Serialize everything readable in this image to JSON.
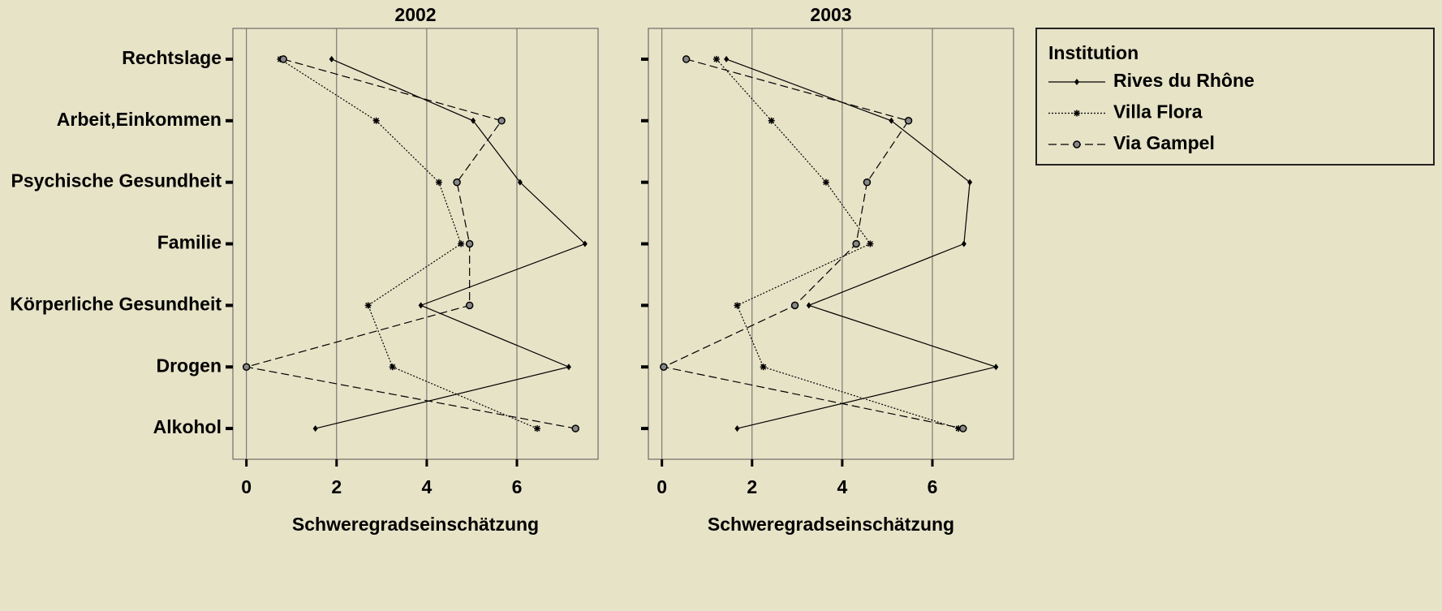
{
  "chart_data": [
    {
      "type": "line",
      "title": "2002",
      "x_label": "Schweregradseinschätzung",
      "categories": [
        "Rechtslage",
        "Arbeit,Einkommen",
        "Psychische Gesundheit",
        "Familie",
        "Körperliche Gesundheit",
        "Drogen",
        "Alkohol"
      ],
      "xlim": [
        -0.3,
        7.8
      ],
      "xticks": [
        0,
        2,
        4,
        6
      ],
      "grid": true,
      "legend_title": "Institution",
      "series": [
        {
          "name": "Rives du Rhône",
          "color": "#000000",
          "line_style": "solid",
          "marker": "diamond",
          "values": [
            1.89,
            5.03,
            6.07,
            7.51,
            3.87,
            7.15,
            1.53
          ]
        },
        {
          "name": "Villa Flora",
          "color": "#000000",
          "line_style": "dotted",
          "marker": "star",
          "values": [
            0.75,
            2.88,
            4.27,
            4.76,
            2.7,
            3.24,
            6.45
          ]
        },
        {
          "name": "Via Gampel",
          "color": "#000000",
          "line_style": "dashed",
          "marker": "circle",
          "values": [
            0.82,
            5.66,
            4.67,
            4.95,
            4.95,
            0.0,
            7.3
          ]
        }
      ]
    },
    {
      "type": "line",
      "title": "2003",
      "x_label": "Schweregradseinschätzung",
      "xlim": [
        -0.3,
        7.8
      ],
      "xticks": [
        0,
        2,
        4,
        6
      ],
      "grid": true,
      "series": [
        {
          "name": "Rives du Rhône",
          "color": "#000000",
          "line_style": "solid",
          "marker": "diamond",
          "values": [
            1.43,
            5.09,
            6.83,
            6.7,
            3.26,
            7.41,
            1.67
          ]
        },
        {
          "name": "Villa Flora",
          "color": "#000000",
          "line_style": "dotted",
          "marker": "star",
          "values": [
            1.21,
            2.43,
            3.64,
            4.62,
            1.67,
            2.25,
            6.58
          ]
        },
        {
          "name": "Via Gampel",
          "color": "#000000",
          "line_style": "dashed",
          "marker": "circle",
          "values": [
            0.54,
            5.47,
            4.55,
            4.31,
            2.95,
            0.04,
            6.68
          ]
        }
      ]
    }
  ]
}
